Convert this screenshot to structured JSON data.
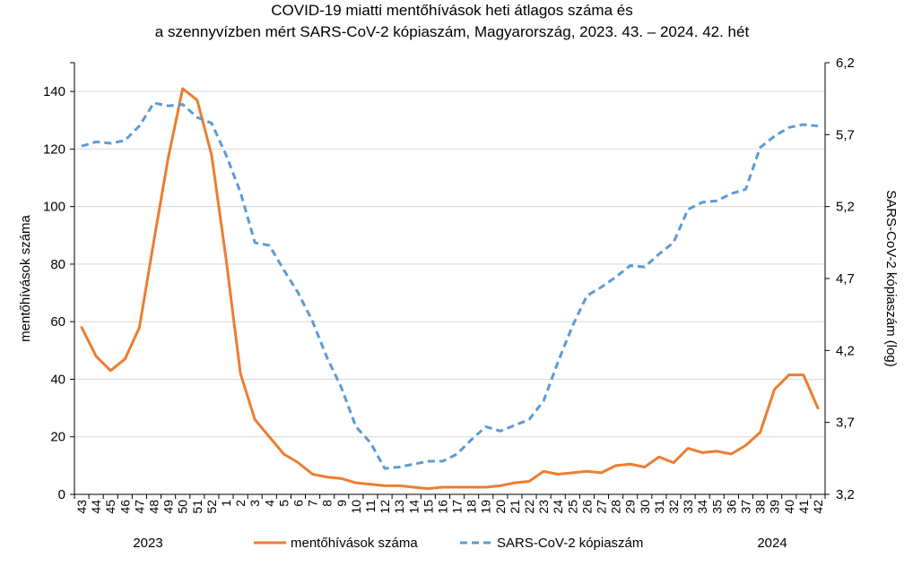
{
  "chart_data": {
    "type": "line",
    "title": [
      "COVID-19 miatti mentőhívások heti átlagos száma és",
      "a szennyvízben mért SARS-CoV-2 kópiaszám, Magyarország, 2023. 43. – 2024. 42. hét"
    ],
    "ylabel": "mentőhívások száma",
    "y2label": "SARS-CoV-2 kópiaszám (log)",
    "year_labels": [
      "2023",
      "2024"
    ],
    "ylim": [
      0,
      150
    ],
    "yticks": [
      "0",
      "20",
      "40",
      "60",
      "80",
      "100",
      "120",
      "140"
    ],
    "y2lim": [
      3.2,
      6.2
    ],
    "y2ticks": [
      "3,2",
      "3,7",
      "4,2",
      "4,7",
      "5,2",
      "5,7",
      "6,2"
    ],
    "grid": true,
    "legend_position": "bottom-center",
    "categories": [
      "43",
      "44",
      "45",
      "46",
      "47",
      "48",
      "49",
      "50",
      "51",
      "52",
      "1",
      "2",
      "3",
      "4",
      "5",
      "6",
      "7",
      "8",
      "9",
      "10",
      "11",
      "12",
      "13",
      "14",
      "15",
      "16",
      "17",
      "18",
      "19",
      "20",
      "21",
      "22",
      "23",
      "24",
      "25",
      "26",
      "27",
      "28",
      "29",
      "30",
      "31",
      "32",
      "33",
      "34",
      "35",
      "36",
      "37",
      "38",
      "39",
      "40",
      "41",
      "42"
    ],
    "series": [
      {
        "name": "mentőhívások száma",
        "axis": "left",
        "color": "#ed7d31",
        "style": "solid",
        "values": [
          58,
          48,
          43,
          47,
          58,
          88,
          117,
          141,
          137,
          118,
          82,
          42,
          26,
          20,
          14,
          11,
          7,
          6,
          5.5,
          4,
          3.5,
          3,
          3,
          2.5,
          2,
          2.5,
          2.5,
          2.5,
          2.5,
          3,
          4,
          4.5,
          8,
          7,
          7.5,
          8,
          7.5,
          10,
          10.5,
          9.5,
          13,
          11,
          16,
          14.5,
          15,
          14,
          17,
          21.5,
          36.5,
          41.5,
          41.5,
          30
        ]
      },
      {
        "name": "SARS-CoV-2 kópiaszám",
        "axis": "right",
        "color": "#5b9bd5",
        "style": "dashed",
        "values": [
          5.62,
          5.65,
          5.64,
          5.66,
          5.76,
          5.92,
          5.9,
          5.91,
          5.82,
          5.78,
          5.56,
          5.3,
          4.95,
          4.93,
          4.76,
          4.6,
          4.4,
          4.15,
          3.94,
          3.67,
          3.56,
          3.38,
          3.39,
          3.41,
          3.43,
          3.43,
          3.48,
          3.58,
          3.67,
          3.64,
          3.68,
          3.72,
          3.85,
          4.12,
          4.37,
          4.58,
          4.64,
          4.71,
          4.79,
          4.78,
          4.87,
          4.95,
          5.18,
          5.23,
          5.24,
          5.29,
          5.32,
          5.61,
          5.69,
          5.75,
          5.77,
          5.76
        ]
      }
    ]
  }
}
